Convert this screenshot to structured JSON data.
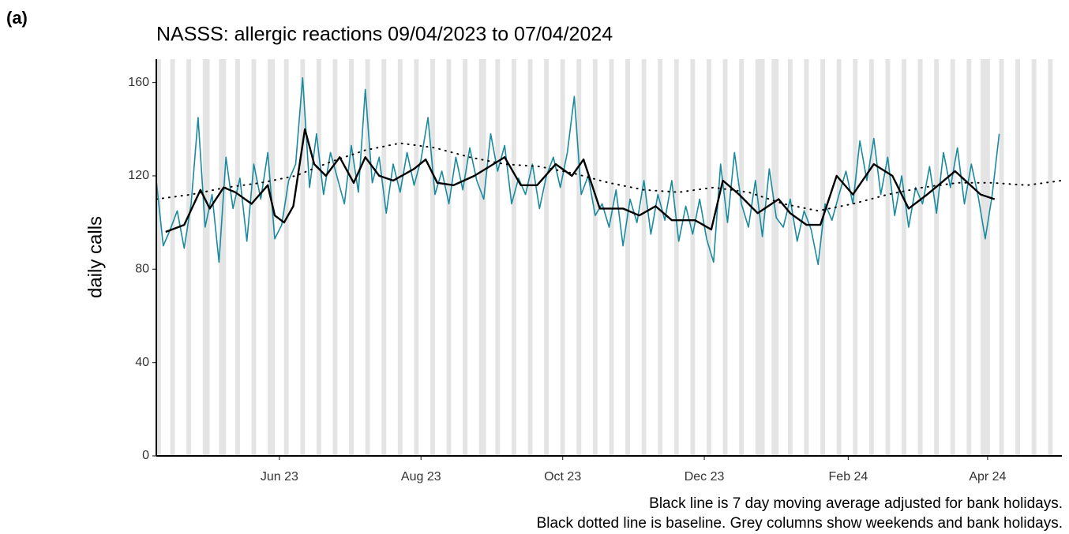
{
  "panel_label": "(a)",
  "chart_data": {
    "type": "line",
    "title": "NASSS: allergic reactions 09/04/2023 to 07/04/2024",
    "y_label": "daily calls",
    "notes": [
      "Black line is 7 day moving average adjusted for bank holidays.",
      "Black dotted line is baseline. Grey columns show weekends and bank holidays."
    ],
    "xlim": [
      0,
      390
    ],
    "xticks": [
      {
        "value": 53,
        "label": "Jun 23"
      },
      {
        "value": 114,
        "label": "Aug 23"
      },
      {
        "value": 175,
        "label": "Oct 23"
      },
      {
        "value": 236,
        "label": "Dec 23"
      },
      {
        "value": 298,
        "label": "Feb 24"
      },
      {
        "value": 358,
        "label": "Apr 24"
      }
    ],
    "ylim": [
      0,
      170
    ],
    "yticks": [
      0,
      40,
      80,
      120,
      160
    ],
    "shade_color": "#e4e4e4",
    "shaded": [
      [
        0,
        2
      ],
      [
        6,
        8
      ],
      [
        13,
        15
      ],
      [
        20,
        23
      ],
      [
        27,
        30
      ],
      [
        34,
        36
      ],
      [
        41,
        43
      ],
      [
        48,
        51
      ],
      [
        55,
        57
      ],
      [
        62,
        64
      ],
      [
        69,
        71
      ],
      [
        76,
        78
      ],
      [
        83,
        85
      ],
      [
        90,
        92
      ],
      [
        97,
        99
      ],
      [
        104,
        106
      ],
      [
        111,
        113
      ],
      [
        118,
        120
      ],
      [
        125,
        127
      ],
      [
        132,
        134
      ],
      [
        139,
        142
      ],
      [
        146,
        148
      ],
      [
        153,
        155
      ],
      [
        160,
        162
      ],
      [
        167,
        169
      ],
      [
        174,
        176
      ],
      [
        181,
        183
      ],
      [
        188,
        190
      ],
      [
        195,
        197
      ],
      [
        202,
        204
      ],
      [
        209,
        211
      ],
      [
        216,
        218
      ],
      [
        223,
        225
      ],
      [
        230,
        232
      ],
      [
        237,
        239
      ],
      [
        244,
        246
      ],
      [
        251,
        253
      ],
      [
        258,
        262
      ],
      [
        265,
        268
      ],
      [
        272,
        274
      ],
      [
        279,
        281
      ],
      [
        286,
        288
      ],
      [
        293,
        295
      ],
      [
        300,
        302
      ],
      [
        307,
        309
      ],
      [
        314,
        316
      ],
      [
        321,
        323
      ],
      [
        328,
        330
      ],
      [
        335,
        337
      ],
      [
        342,
        344
      ],
      [
        349,
        351
      ],
      [
        355,
        359
      ],
      [
        363,
        365
      ],
      [
        370,
        372
      ],
      [
        377,
        379
      ],
      [
        384,
        386
      ]
    ],
    "series": [
      {
        "color": "#1a8a9e",
        "width": 1.6,
        "dash": false,
        "x": [
          0,
          3,
          6,
          9,
          12,
          15,
          18,
          21,
          24,
          27,
          30,
          33,
          36,
          39,
          42,
          45,
          48,
          51,
          54,
          57,
          60,
          63,
          66,
          69,
          72,
          75,
          78,
          81,
          84,
          87,
          90,
          93,
          96,
          99,
          102,
          105,
          108,
          111,
          114,
          117,
          120,
          123,
          126,
          129,
          132,
          135,
          138,
          141,
          144,
          147,
          150,
          153,
          156,
          159,
          162,
          165,
          168,
          171,
          174,
          177,
          180,
          183,
          186,
          189,
          192,
          195,
          198,
          201,
          204,
          207,
          210,
          213,
          216,
          219,
          222,
          225,
          228,
          231,
          234,
          237,
          240,
          243,
          246,
          249,
          252,
          255,
          258,
          261,
          264,
          267,
          270,
          273,
          276,
          279,
          282,
          285,
          288,
          291,
          294,
          297,
          300,
          303,
          306,
          309,
          312,
          315,
          318,
          321,
          324,
          327,
          330,
          333,
          336,
          339,
          342,
          345,
          348,
          351,
          354,
          357,
          360,
          363
        ],
        "values": [
          118,
          90,
          97,
          105,
          89,
          108,
          145,
          98,
          112,
          83,
          128,
          106,
          119,
          92,
          125,
          110,
          130,
          93,
          99,
          118,
          125,
          162,
          115,
          138,
          112,
          130,
          119,
          108,
          133,
          113,
          157,
          117,
          128,
          104,
          125,
          113,
          130,
          116,
          127,
          145,
          112,
          122,
          108,
          128,
          114,
          132,
          118,
          110,
          138,
          122,
          133,
          108,
          119,
          112,
          125,
          106,
          120,
          128,
          115,
          130,
          154,
          112,
          120,
          103,
          108,
          98,
          114,
          90,
          110,
          100,
          118,
          95,
          112,
          101,
          118,
          92,
          107,
          95,
          110,
          93,
          83,
          125,
          100,
          130,
          108,
          98,
          118,
          94,
          123,
          102,
          98,
          110,
          92,
          105,
          97,
          82,
          108,
          101,
          112,
          122,
          108,
          135,
          118,
          136,
          112,
          128,
          103,
          120,
          98,
          115,
          108,
          124,
          104,
          130,
          115,
          132,
          108,
          125,
          111,
          93,
          112,
          138
        ]
      },
      {
        "color": "#000000",
        "width": 2.4,
        "dash": false,
        "x": [
          4,
          12,
          19,
          23,
          29,
          34,
          41,
          48,
          51,
          55,
          59,
          64,
          68,
          73,
          79,
          85,
          90,
          96,
          102,
          111,
          116,
          121,
          128,
          137,
          150,
          157,
          164,
          172,
          179,
          184,
          191,
          201,
          208,
          215,
          222,
          232,
          239,
          244,
          251,
          259,
          268,
          273,
          280,
          286,
          293,
          300,
          309,
          317,
          324,
          332,
          344,
          355,
          361
        ],
        "values": [
          96,
          99,
          114,
          106,
          115,
          113,
          108,
          116,
          103,
          100,
          107,
          140,
          125,
          120,
          128,
          117,
          128,
          120,
          118,
          123,
          127,
          117,
          116,
          120,
          128,
          116,
          116,
          125,
          120,
          127,
          106,
          106,
          103,
          107,
          101,
          101,
          97,
          118,
          112,
          104,
          110,
          104,
          99,
          99,
          120,
          112,
          125,
          120,
          106,
          112,
          122,
          112,
          110
        ]
      },
      {
        "color": "#000000",
        "width": 2,
        "dash": true,
        "x": [
          0,
          15,
          30,
          45,
          60,
          75,
          90,
          105,
          120,
          135,
          150,
          165,
          180,
          195,
          210,
          225,
          240,
          255,
          270,
          285,
          300,
          315,
          330,
          345,
          360,
          375,
          390
        ],
        "values": [
          110,
          112,
          115,
          117,
          120,
          126,
          131,
          134,
          132,
          128,
          125,
          124,
          121,
          117,
          114,
          113,
          115,
          113,
          108,
          105,
          108,
          112,
          115,
          117,
          117,
          116,
          118
        ]
      }
    ]
  }
}
